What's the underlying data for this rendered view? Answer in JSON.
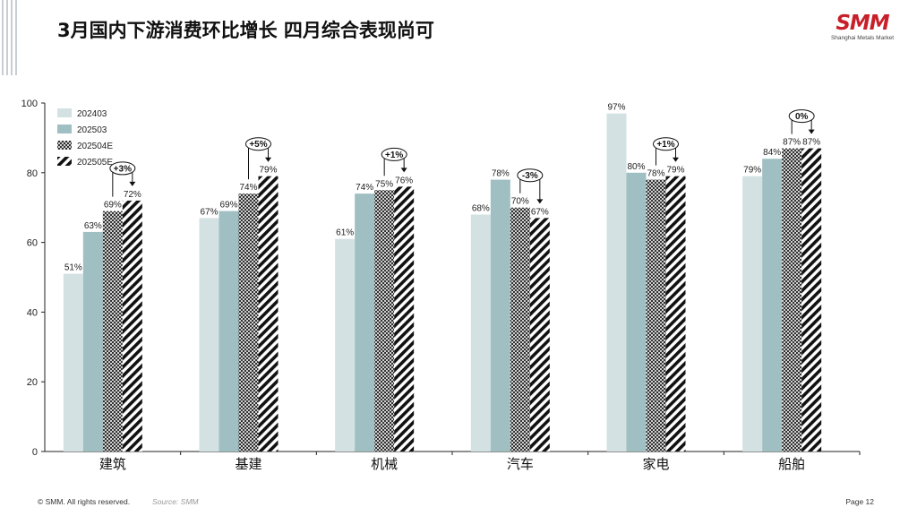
{
  "slide": {
    "title": "3月国内下游消费环比增长 四月综合表现尚可",
    "logo": {
      "word": "SMM",
      "subtitle": "Shanghai Metals Market"
    },
    "footer": {
      "copyright": "© SMM. All rights reserved.",
      "source": "Source: SMM",
      "page": "Page 12"
    }
  },
  "colors": {
    "s2024": "#d3e1e2",
    "s2025": "#9fbfc2",
    "hatch": "#111111",
    "accent": "#c8202b"
  },
  "chart_data": {
    "type": "bar",
    "categories": [
      "建筑",
      "基建",
      "机械",
      "汽车",
      "家电",
      "船舶"
    ],
    "series": [
      {
        "name": "202403",
        "pattern": "solid-light",
        "values": [
          51,
          67,
          61,
          68,
          97,
          79
        ]
      },
      {
        "name": "202503",
        "pattern": "solid-dark",
        "values": [
          63,
          69,
          74,
          78,
          80,
          84
        ]
      },
      {
        "name": "202504E",
        "pattern": "cross-hatch",
        "values": [
          69,
          74,
          75,
          70,
          78,
          87
        ]
      },
      {
        "name": "202505E",
        "pattern": "diagonal",
        "values": [
          72,
          79,
          76,
          67,
          79,
          87
        ]
      }
    ],
    "data_labels": [
      [
        "51%",
        "63%",
        "69%",
        "72%"
      ],
      [
        "67%",
        "69%",
        "74%",
        "79%"
      ],
      [
        "61%",
        "74%",
        "75%",
        "76%"
      ],
      [
        "68%",
        "78%",
        "70%",
        "67%"
      ],
      [
        "97%",
        "80%",
        "78%",
        "79%"
      ],
      [
        "79%",
        "84%",
        "87%",
        "87%"
      ]
    ],
    "annotations": [
      "+3%",
      "+5%",
      "+1%",
      "-3%",
      "+1%",
      "0%"
    ],
    "yticks": [
      0,
      20,
      40,
      60,
      80,
      100
    ],
    "ylim": [
      0,
      100
    ],
    "legend": "top-left",
    "grid": false
  }
}
